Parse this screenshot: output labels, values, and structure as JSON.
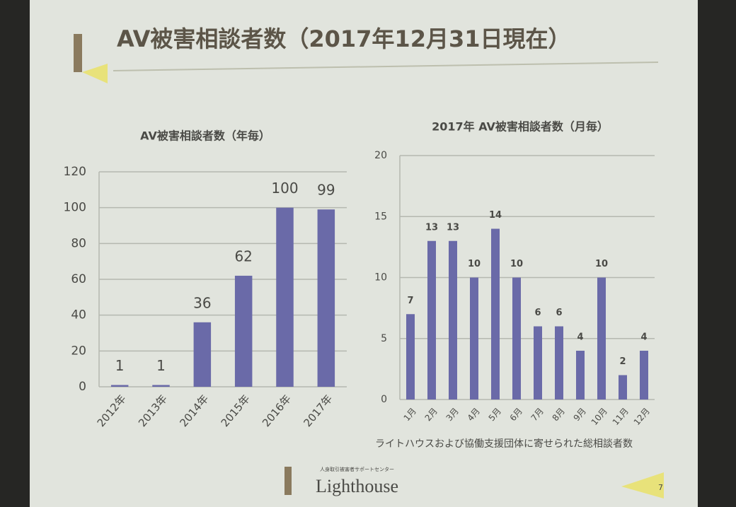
{
  "slide": {
    "title": "AV被害相談者数（2017年12月31日現在）",
    "footnote": "ライトハウスおよび協働支援団体に寄せられた総相談者数",
    "logo_subtitle": "人身取引被害者サポートセンター",
    "logo": "Lighthouse",
    "page_number": "7"
  },
  "chart_data": [
    {
      "type": "bar",
      "title": "AV被害相談者数（年毎）",
      "categories": [
        "2012年",
        "2013年",
        "2014年",
        "2015年",
        "2016年",
        "2017年"
      ],
      "values": [
        1,
        1,
        36,
        62,
        100,
        99
      ],
      "color": "#6a6aa8",
      "ylim": [
        0,
        120
      ],
      "yticks": [
        0,
        20,
        40,
        60,
        80,
        100,
        120
      ],
      "grid": true
    },
    {
      "type": "bar",
      "title": "2017年 AV被害相談者数（月毎）",
      "categories": [
        "1月",
        "2月",
        "3月",
        "4月",
        "5月",
        "6月",
        "7月",
        "8月",
        "9月",
        "10月",
        "11月",
        "12月"
      ],
      "values": [
        7,
        13,
        13,
        10,
        14,
        10,
        6,
        6,
        4,
        10,
        2,
        4
      ],
      "color": "#6a6aa8",
      "ylim": [
        0,
        20
      ],
      "yticks": [
        0,
        5,
        10,
        15,
        20
      ],
      "grid": true
    }
  ]
}
